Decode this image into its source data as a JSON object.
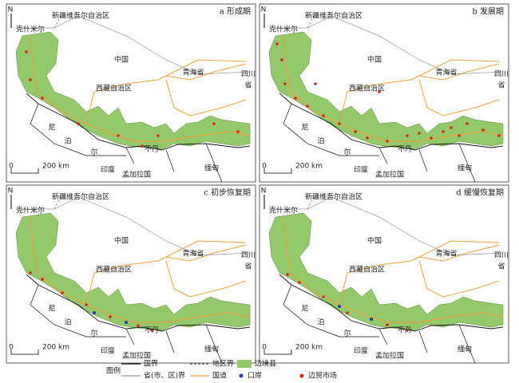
{
  "panels": [
    {
      "label": "a 形成期",
      "places": [
        "新疆维吾尔自治区",
        "克什米尔",
        "中国",
        "青海省",
        "西藏自治区",
        "四川",
        "省",
        "尼",
        "泊",
        "尔",
        "不丹",
        "印度",
        "孟加拉国",
        "缅甸",
        "N",
        "0",
        "200 km"
      ]
    },
    {
      "label": "b 发展期",
      "places": [
        "新疆维吾尔自治区",
        "克什米尔",
        "中国",
        "青海省",
        "西藏自治区",
        "四川",
        "省",
        "尼",
        "泊",
        "尔",
        "不丹",
        "印度",
        "孟加拉国",
        "缅甸",
        "N",
        "0",
        "200 km"
      ]
    },
    {
      "label": "c 初步恢复期",
      "places": [
        "新疆维吾尔自治区",
        "克什米尔",
        "中国",
        "青海省",
        "西藏自治区",
        "四川",
        "省",
        "尼",
        "泊",
        "尔",
        "不丹",
        "印度",
        "孟加拉国",
        "缅甸",
        "N",
        "0",
        "200 km"
      ]
    },
    {
      "label": "d 缓慢恢复期",
      "places": [
        "新疆维吾尔自治区",
        "克什米尔",
        "中国",
        "青海省",
        "西藏自治区",
        "四川",
        "省",
        "尼",
        "泊",
        "尔",
        "不丹",
        "印度",
        "孟加拉国",
        "缅甸",
        "N",
        "0",
        "200 km"
      ]
    }
  ],
  "legend": {
    "title": "图例",
    "items": [
      "国界",
      "地区界",
      "边境县",
      "省(市、区)界",
      "国道",
      "口岸",
      "边贸市场"
    ]
  }
}
